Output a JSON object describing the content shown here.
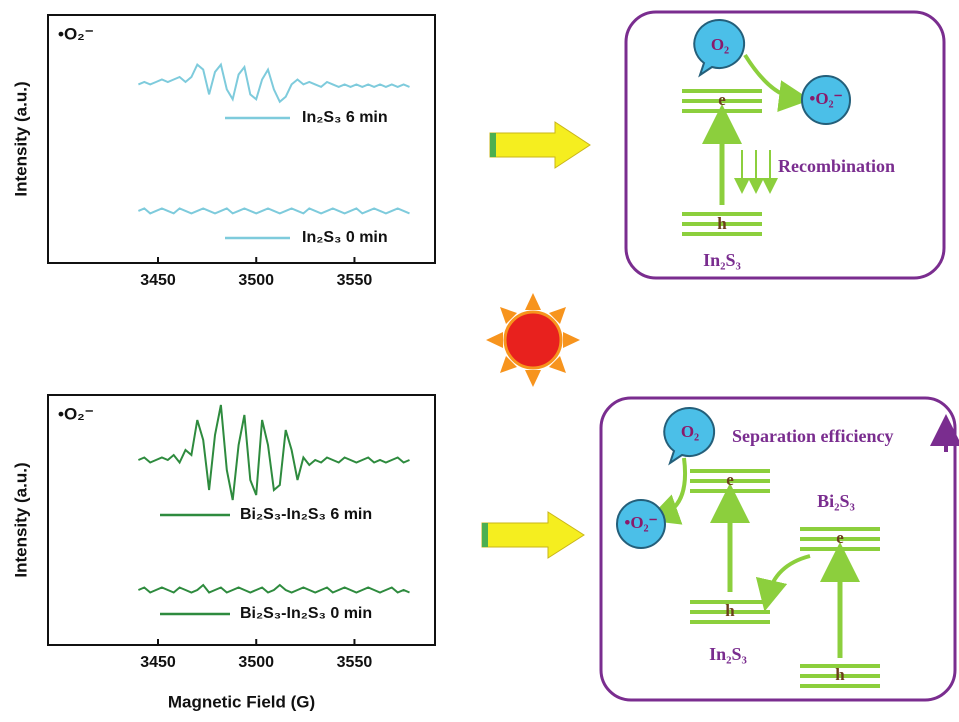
{
  "chart_data": [
    {
      "type": "line",
      "y_label": "Intensity (a.u.)",
      "annotation": "•O₂⁻",
      "xlim": [
        3394,
        3591
      ],
      "xticks": [
        3450,
        3500,
        3550
      ],
      "ylim": [
        0,
        100
      ],
      "x": [
        3440,
        3443,
        3446,
        3449,
        3452,
        3455,
        3458,
        3461,
        3464,
        3467,
        3470,
        3473,
        3476,
        3479,
        3482,
        3485,
        3488,
        3491,
        3494,
        3497,
        3500,
        3503,
        3506,
        3509,
        3512,
        3515,
        3518,
        3521,
        3524,
        3527,
        3530,
        3533,
        3536,
        3539,
        3542,
        3545,
        3548,
        3551,
        3554,
        3557,
        3560,
        3563,
        3566,
        3569,
        3572,
        3575,
        3578
      ],
      "series": [
        {
          "name": "In₂S₃ 6 min",
          "color": "#7ecbdc",
          "values": [
            72,
            73,
            72,
            73,
            74,
            73,
            74,
            75,
            73,
            75,
            80,
            78,
            68,
            77,
            80,
            70,
            66,
            76,
            79,
            68,
            66,
            74,
            78,
            70,
            65,
            67,
            72,
            74,
            72,
            73,
            72,
            71,
            73,
            72,
            71,
            72,
            71,
            72,
            71,
            72,
            71,
            72,
            71,
            72,
            71,
            72,
            71
          ]
        },
        {
          "name": "In₂S₃ 0 min",
          "color": "#7ecbdc",
          "values": [
            21,
            22,
            20,
            21,
            22,
            21,
            20,
            22,
            21,
            20,
            21,
            22,
            21,
            20,
            21,
            22,
            20,
            21,
            22,
            21,
            20,
            21,
            22,
            21,
            20,
            21,
            22,
            21,
            20,
            22,
            21,
            20,
            21,
            22,
            21,
            20,
            21,
            22,
            20,
            21,
            22,
            21,
            20,
            21,
            22,
            21,
            20
          ]
        }
      ]
    },
    {
      "type": "line",
      "y_label": "Intensity (a.u.)",
      "x_label": "Magnetic Field (G)",
      "annotation": "•O₂⁻",
      "xlim": [
        3394,
        3591
      ],
      "xticks": [
        3450,
        3500,
        3550
      ],
      "ylim": [
        0,
        100
      ],
      "x": [
        3440,
        3443,
        3446,
        3449,
        3452,
        3455,
        3458,
        3461,
        3464,
        3467,
        3470,
        3473,
        3476,
        3479,
        3482,
        3485,
        3488,
        3491,
        3494,
        3497,
        3500,
        3503,
        3506,
        3509,
        3512,
        3515,
        3518,
        3521,
        3524,
        3527,
        3530,
        3533,
        3536,
        3539,
        3542,
        3545,
        3548,
        3551,
        3554,
        3557,
        3560,
        3563,
        3566,
        3569,
        3572,
        3575,
        3578
      ],
      "series": [
        {
          "name": "Bi₂S₃-In₂S₃ 6 min",
          "color": "#2e8b3e",
          "values": [
            74,
            75,
            73,
            74,
            75,
            74,
            76,
            73,
            78,
            76,
            90,
            82,
            62,
            84,
            96,
            70,
            58,
            80,
            92,
            66,
            60,
            90,
            80,
            62,
            64,
            86,
            78,
            66,
            75,
            72,
            74,
            73,
            75,
            74,
            73,
            75,
            74,
            73,
            74,
            75,
            73,
            74,
            73,
            74,
            75,
            73,
            74
          ]
        },
        {
          "name": "Bi₂S₃-In₂S₃ 0 min",
          "color": "#2e8b3e",
          "values": [
            22,
            23,
            21,
            22,
            23,
            22,
            21,
            23,
            22,
            21,
            22,
            24,
            21,
            22,
            23,
            21,
            22,
            23,
            22,
            21,
            22,
            23,
            21,
            22,
            24,
            22,
            21,
            22,
            23,
            22,
            21,
            22,
            23,
            21,
            22,
            23,
            22,
            21,
            22,
            23,
            22,
            21,
            22,
            23,
            21,
            22,
            21
          ]
        }
      ]
    }
  ],
  "diagrams": [
    {
      "o2": "O₂",
      "e": "e",
      "radical": "•O₂⁻",
      "recombination": "Recombination",
      "h": "h",
      "material": "In₂S₃"
    },
    {
      "o2": "O₂",
      "separation": "Separation efficiency",
      "e_in": "e",
      "radical": "•O₂⁻",
      "bi_label": "Bi₂S₃",
      "e_bi": "e",
      "h_in": "h",
      "in_label": "In₂S₃",
      "h_bi": "h"
    }
  ]
}
